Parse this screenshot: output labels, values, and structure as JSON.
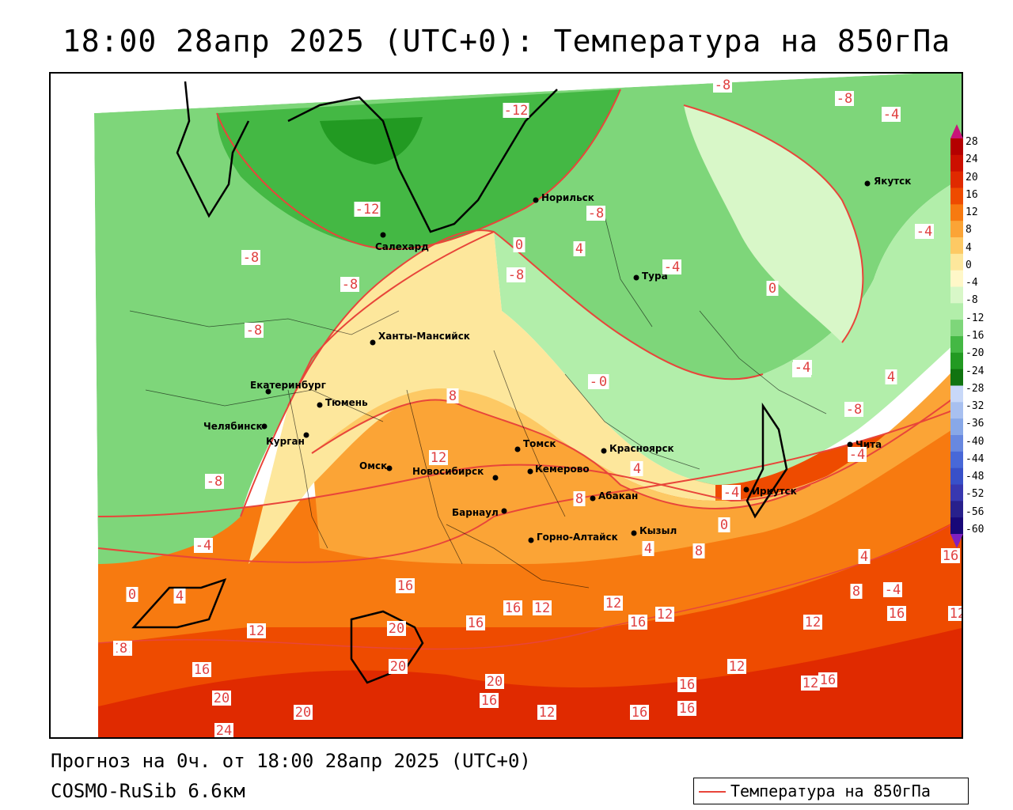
{
  "title": "18:00 28апр 2025 (UTC+0): Температура на 850гПа",
  "footer": {
    "forecast": "Прогноз на 0ч. от 18:00 28апр 2025 (UTC+0)",
    "model": "COSMO-RuSib 6.6км"
  },
  "legend": {
    "label": "Температура на 850гПа",
    "line_color": "#e8453a"
  },
  "colorbar": {
    "labels": [
      "28",
      "24",
      "20",
      "16",
      "12",
      "8",
      "4",
      "0",
      "-4",
      "-8",
      "-12",
      "-16",
      "-20",
      "-24",
      "-28",
      "-32",
      "-36",
      "-40",
      "-44",
      "-48",
      "-52",
      "-56",
      "-60"
    ],
    "colors": [
      "#b40000",
      "#cc1000",
      "#e02a00",
      "#ee4b00",
      "#f77a10",
      "#fba436",
      "#fdc964",
      "#fde79c",
      "#fff7c8",
      "#d8f7c8",
      "#b2eeaa",
      "#7ed67a",
      "#44b844",
      "#229a22",
      "#107410",
      "#c8d8f8",
      "#a8c0f0",
      "#88a8e8",
      "#6888e0",
      "#4868d8",
      "#3850c8",
      "#3838b0",
      "#28208c",
      "#180878"
    ]
  },
  "cities": [
    {
      "name": "Якутск"
    },
    {
      "name": "Норильск"
    },
    {
      "name": "Салехард"
    },
    {
      "name": "Тура"
    },
    {
      "name": "Ханты-Мансийск"
    },
    {
      "name": "Екатеринбург"
    },
    {
      "name": "Тюмень"
    },
    {
      "name": "Челябинск"
    },
    {
      "name": "Курган"
    },
    {
      "name": "Омск"
    },
    {
      "name": "Новосибирск"
    },
    {
      "name": "Томск"
    },
    {
      "name": "Кемерово"
    },
    {
      "name": "Красноярск"
    },
    {
      "name": "Абакан"
    },
    {
      "name": "Барнаул"
    },
    {
      "name": "Горно-Алтайск"
    },
    {
      "name": "Кызыл"
    },
    {
      "name": "Иркутск"
    },
    {
      "name": "Чита"
    }
  ],
  "isotherm_labels": [
    "-8",
    "-8",
    "-4",
    "-12",
    "-12",
    "-8",
    "-4",
    "0",
    "4",
    "-8",
    "-8",
    "-8",
    "-4",
    "-8",
    "-4",
    "0",
    "-8",
    "8",
    "12",
    "0",
    "4",
    "-4",
    "-4",
    "4",
    "-8",
    "-4",
    "-8",
    "8",
    "4",
    "8",
    "0",
    "4",
    "-4",
    "4",
    "16",
    "16",
    "16",
    "12",
    "8",
    "12",
    "16",
    "12",
    "12",
    "20",
    "12",
    "16",
    "16",
    "12",
    "12",
    "16",
    "16",
    "20",
    "16",
    "12",
    "8",
    "12",
    "16",
    "20",
    "24",
    "20",
    "16",
    "16",
    "20",
    "16",
    "12",
    "0",
    "4",
    "-4"
  ]
}
